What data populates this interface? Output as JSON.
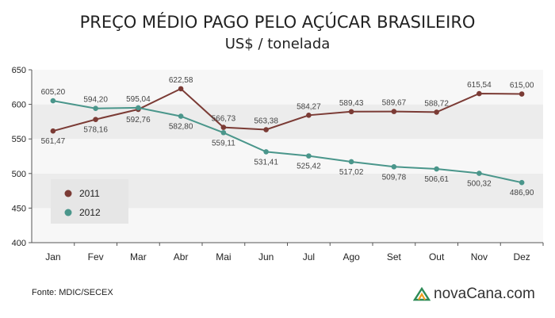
{
  "chart_data": {
    "type": "line",
    "title": "PREÇO MÉDIO PAGO PELO AÇÚCAR BRASILEIRO",
    "subtitle": "US$ / tonelada",
    "categories": [
      "Jan",
      "Fev",
      "Mar",
      "Abr",
      "Mai",
      "Jun",
      "Jul",
      "Ago",
      "Set",
      "Out",
      "Nov",
      "Dez"
    ],
    "yticks": [
      "400",
      "450",
      "500",
      "550",
      "600",
      "650"
    ],
    "ylim": [
      400,
      650
    ],
    "grid": "horizontal bands",
    "legend_position": "bottom-left",
    "series": [
      {
        "name": "2011",
        "color": "#7b3b35",
        "values": [
          561.47,
          578.16,
          592.76,
          622.58,
          566.73,
          563.38,
          584.27,
          589.43,
          589.67,
          588.72,
          615.54,
          615.0
        ],
        "labels": [
          "561,47",
          "578,16",
          "592,76",
          "622,58",
          "566,73",
          "563,38",
          "584,27",
          "589,43",
          "589,67",
          "588,72",
          "615,54",
          "615,00"
        ]
      },
      {
        "name": "2012",
        "color": "#4a968b",
        "values": [
          605.2,
          594.2,
          595.04,
          582.8,
          559.11,
          531.41,
          525.42,
          517.02,
          509.78,
          506.61,
          500.32,
          486.9
        ],
        "labels": [
          "605,20",
          "594,20",
          "595,04",
          "582,80",
          "559,11",
          "531,41",
          "525,42",
          "517,02",
          "509,78",
          "506,61",
          "500,32",
          "486,90"
        ]
      }
    ]
  },
  "footer": {
    "source": "Fonte: MDIC/SECEX",
    "brand": "novaCana.com",
    "brand_icon": "novacana-logo-icon"
  }
}
